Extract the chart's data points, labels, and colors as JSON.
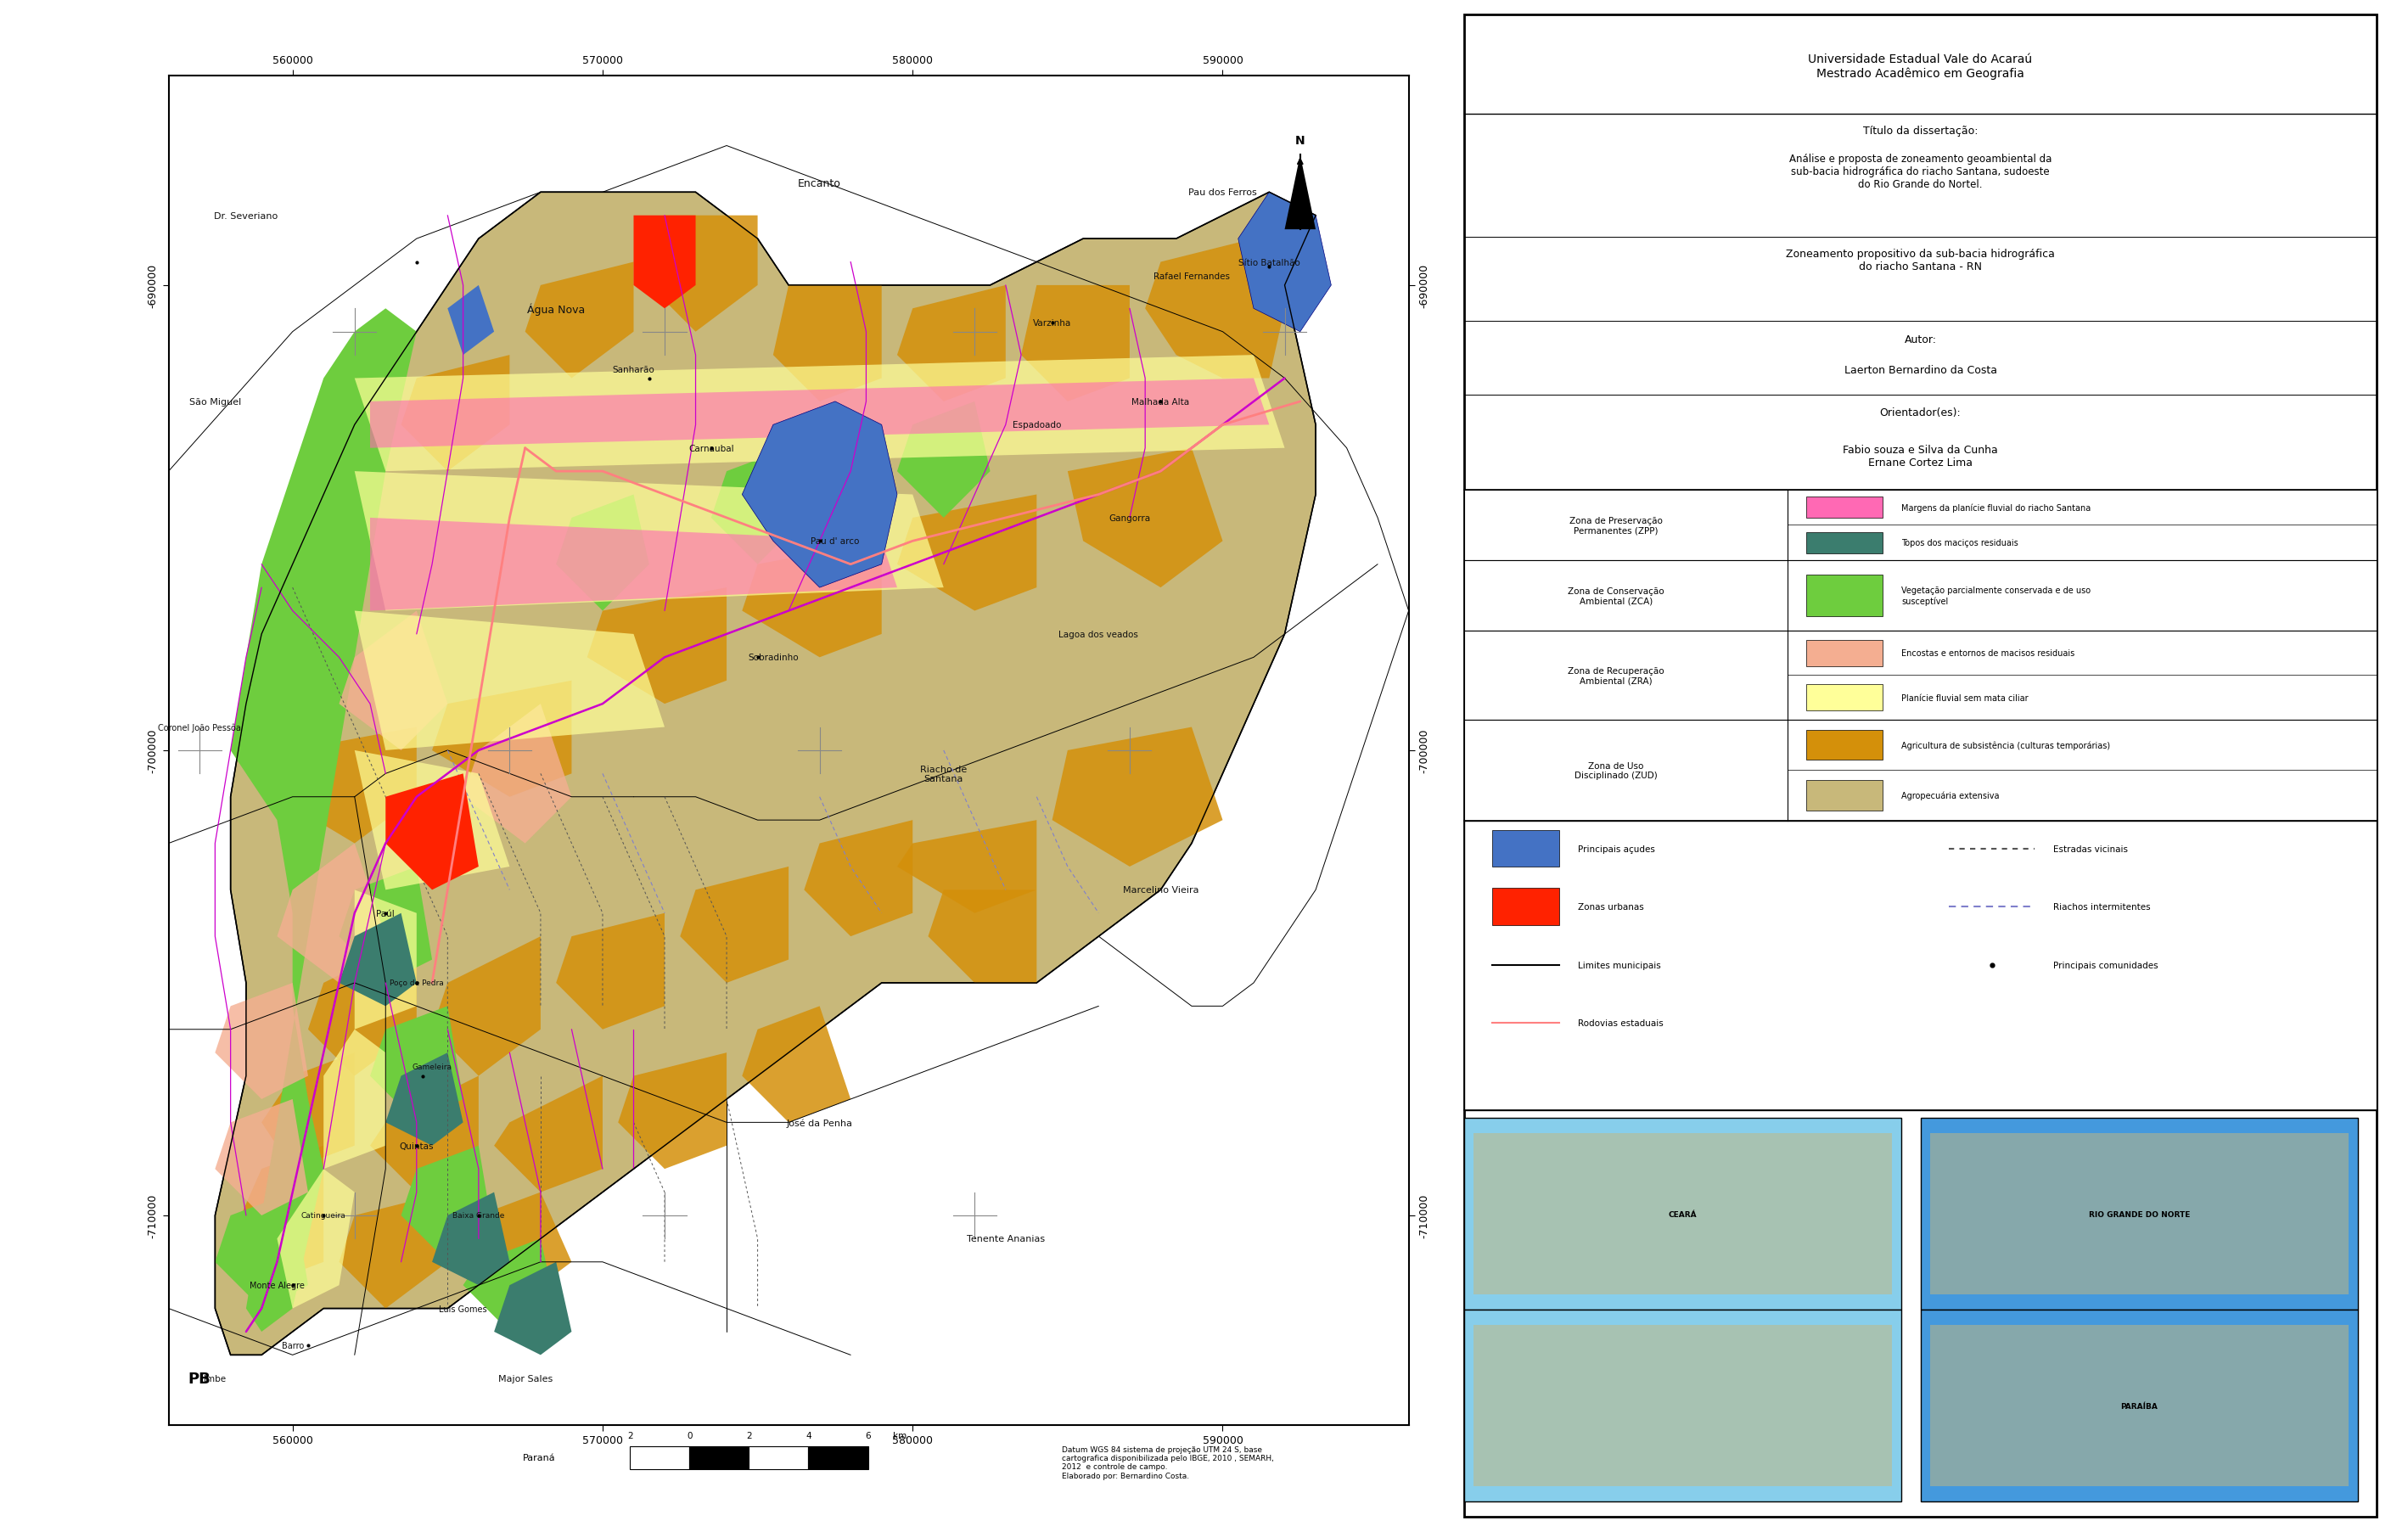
{
  "title_institution": "Universidade Estadual Vale do Acaraú\nMestrado Acadêmico em Geografia",
  "title_dissertation_label": "Título da dissertação:",
  "title_dissertation": "Análise e proposta de zoneamento geoambiental da\nsub-bacia hidrográfica do riacho Santana, sudoeste\ndo Rio Grande do Nortel.",
  "subtitle_zoneamento": "Zoneamento propositivo da sub-bacia hidrográfica\ndo riacho Santana - RN",
  "autor_label": "Autor:",
  "autor": "Laerton Bernardino da Costa",
  "orientador_label": "Orientador(es):",
  "orientador": "Fabio souza e Silva da Cunha\nErnane Cortez Lima",
  "datum_text": "Datum WGS 84 sistema de projeção UTM 24 S, base\ncartografica disponibilizada pelo IBGE, 2010 , SEMARH,\n2012  e controle de campo.\nElaborado por: Bernardino Costa.",
  "parana_label": "Paraná",
  "pb_label": "PB",
  "xticks": [
    560000,
    570000,
    580000,
    590000
  ],
  "yticks": [
    -690000,
    -700000,
    -710000
  ],
  "colors": {
    "pink_fluvial": "#FF69B4",
    "dark_teal_tops": "#3B7D6E",
    "bright_green_veg": "#6ECD3E",
    "light_salmon_encostas": "#F4AE91",
    "light_yellow_planicie": "#FFFF99",
    "orange_agricultura": "#D4900A",
    "tan_agropecuaria": "#C8B87A",
    "blue_acudes": "#4472C4",
    "red_urbanas": "#FF2200",
    "magenta_rios": "#CC00CC",
    "pink_road": "#FF8080",
    "black_muni": "#000000",
    "dotted_vicinais": "#555555",
    "blue_riachos": "#9999FF",
    "exterior_bg": "#FFFFFF",
    "map_bg": "#FFFFFF"
  },
  "legend_rows": [
    {
      "zone": "Zona de Preservação\nPermanentes (ZPP)",
      "items": [
        {
          "color": "#FF69B4",
          "label": "Margens da planície fluvial do riacho Santana"
        },
        {
          "color": "#3B7D6E",
          "label": "Topos dos maciços residuais"
        }
      ]
    },
    {
      "zone": "Zona de Conservação\nAmbiental (ZCA)",
      "items": [
        {
          "color": "#6ECD3E",
          "label": "Vegetação parcialmente conservada e de uso\nsusceptível"
        }
      ]
    },
    {
      "zone": "Zona de Recuperação\nAmbiental (ZRA)",
      "items": [
        {
          "color": "#F4AE91",
          "label": "Encostas e entornos de macisos residuais"
        },
        {
          "color": "#FFFF99",
          "label": "Planície fluvial sem mata ciliar"
        }
      ]
    },
    {
      "zone": "Zona de Uso\nDisciplinado (ZUD)",
      "items": [
        {
          "color": "#D4900A",
          "label": "Agricultura de subsistência (culturas temporárias)"
        },
        {
          "color": "#C8B87A",
          "label": "Agropecuária extensiva"
        }
      ]
    }
  ]
}
